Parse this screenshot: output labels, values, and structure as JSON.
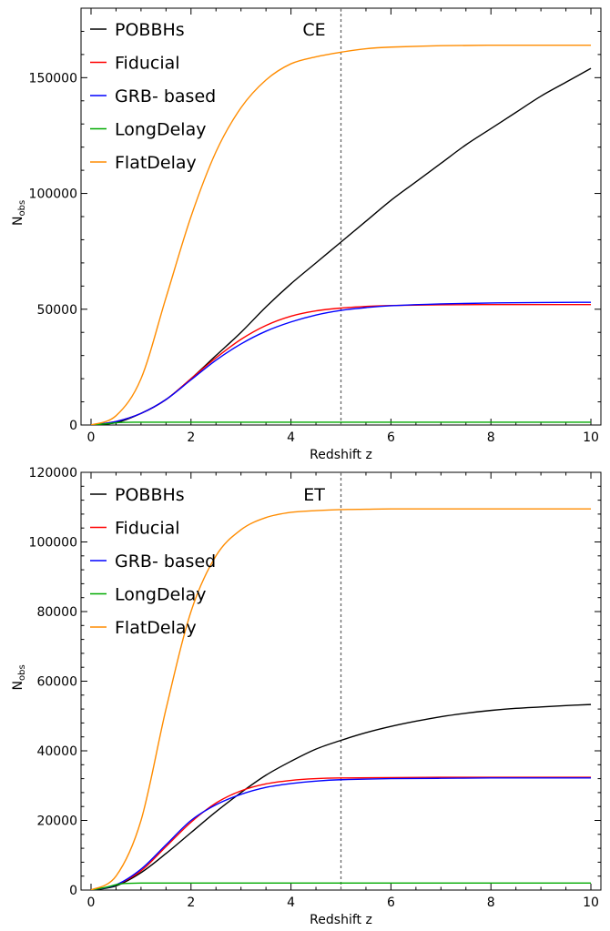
{
  "chart_data": [
    {
      "type": "line",
      "title": "CE",
      "xlabel": "Redshift z",
      "ylabel": "N",
      "ylabel_sub": "obs",
      "xlim": [
        -0.2,
        10.2
      ],
      "ylim": [
        0,
        180000
      ],
      "xticks": [
        0,
        2,
        4,
        6,
        8,
        10
      ],
      "xtick_labels": [
        "0",
        "2",
        "4",
        "6",
        "8",
        "10"
      ],
      "yticks": [
        0,
        50000,
        100000,
        150000
      ],
      "ytick_labels": [
        "0",
        "50000",
        "100000",
        "150000"
      ],
      "vline": 5,
      "legend_position": "top-left",
      "series": [
        {
          "name": "POBBHs",
          "color": "#000000",
          "x": [
            0,
            0.5,
            1,
            1.5,
            2,
            2.5,
            3,
            3.5,
            4,
            4.5,
            5,
            5.5,
            6,
            6.5,
            7,
            7.5,
            8,
            8.5,
            9,
            9.5,
            10
          ],
          "y": [
            0,
            1000,
            5000,
            11000,
            20000,
            30000,
            40000,
            51000,
            61000,
            70000,
            79000,
            88000,
            97000,
            105000,
            113000,
            121000,
            128000,
            135000,
            142000,
            148000,
            154000
          ]
        },
        {
          "name": "Fiducial",
          "color": "#ff0000",
          "x": [
            0,
            0.5,
            1,
            1.5,
            2,
            2.5,
            3,
            3.5,
            4,
            4.5,
            5,
            5.5,
            6,
            7,
            8,
            9,
            10
          ],
          "y": [
            0,
            1500,
            5000,
            11000,
            20000,
            29000,
            37000,
            43000,
            47000,
            49300,
            50500,
            51200,
            51600,
            51900,
            52000,
            52000,
            52000
          ]
        },
        {
          "name": "GRB- based",
          "color": "#0000ff",
          "x": [
            0,
            0.5,
            1,
            1.5,
            2,
            2.5,
            3,
            3.5,
            4,
            4.5,
            5,
            5.5,
            6,
            7,
            8,
            9,
            10
          ],
          "y": [
            0,
            1500,
            5000,
            11000,
            19500,
            28000,
            35000,
            40500,
            44500,
            47500,
            49500,
            50700,
            51500,
            52300,
            52700,
            52900,
            53000
          ]
        },
        {
          "name": "LongDelay",
          "color": "#00aa00",
          "x": [
            0,
            0.3,
            0.6,
            1,
            2,
            4,
            6,
            8,
            10
          ],
          "y": [
            0,
            500,
            1100,
            1200,
            1200,
            1200,
            1200,
            1200,
            1200
          ]
        },
        {
          "name": "FlatDelay",
          "color": "#ff8c00",
          "x": [
            0,
            0.5,
            1,
            1.5,
            2,
            2.5,
            3,
            3.5,
            4,
            4.5,
            5,
            5.5,
            6,
            7,
            8,
            9,
            10
          ],
          "y": [
            0,
            4000,
            20000,
            55000,
            90000,
            118000,
            137000,
            149000,
            156000,
            159000,
            161000,
            162500,
            163200,
            163800,
            164000,
            164000,
            164000
          ]
        }
      ]
    },
    {
      "type": "line",
      "title": "ET",
      "xlabel": "Redshift z",
      "ylabel": "N",
      "ylabel_sub": "obs",
      "xlim": [
        -0.2,
        10.2
      ],
      "ylim": [
        0,
        120000
      ],
      "xticks": [
        0,
        2,
        4,
        6,
        8,
        10
      ],
      "xtick_labels": [
        "0",
        "2",
        "4",
        "6",
        "8",
        "10"
      ],
      "yticks": [
        0,
        20000,
        40000,
        60000,
        80000,
        100000,
        120000
      ],
      "ytick_labels": [
        "0",
        "20000",
        "40000",
        "60000",
        "80000",
        "100000",
        "120000"
      ],
      "vline": 5,
      "legend_position": "top-left",
      "series": [
        {
          "name": "POBBHs",
          "color": "#000000",
          "x": [
            0,
            0.5,
            1,
            1.5,
            2,
            2.5,
            3,
            3.5,
            4,
            4.5,
            5,
            5.5,
            6,
            6.5,
            7,
            7.5,
            8,
            8.5,
            9,
            9.5,
            10
          ],
          "y": [
            0,
            1200,
            5000,
            10500,
            16500,
            22500,
            28000,
            33000,
            37000,
            40500,
            43000,
            45200,
            47000,
            48500,
            49800,
            50800,
            51600,
            52200,
            52600,
            53000,
            53300
          ]
        },
        {
          "name": "Fiducial",
          "color": "#ff0000",
          "x": [
            0,
            0.5,
            1,
            1.5,
            2,
            2.5,
            3,
            3.5,
            4,
            4.5,
            5,
            6,
            7,
            8,
            9,
            10
          ],
          "y": [
            0,
            1500,
            5500,
            12500,
            19500,
            25000,
            28500,
            30500,
            31500,
            32000,
            32200,
            32300,
            32400,
            32400,
            32400,
            32400
          ]
        },
        {
          "name": "GRB- based",
          "color": "#0000ff",
          "x": [
            0,
            0.5,
            1,
            1.5,
            2,
            2.5,
            3,
            3.5,
            4,
            4.5,
            5,
            6,
            7,
            8,
            9,
            10
          ],
          "y": [
            0,
            1500,
            6000,
            13000,
            20000,
            24500,
            27500,
            29500,
            30600,
            31300,
            31700,
            32000,
            32100,
            32200,
            32200,
            32200
          ]
        },
        {
          "name": "LongDelay",
          "color": "#00aa00",
          "x": [
            0,
            0.3,
            0.6,
            1,
            2,
            4,
            6,
            8,
            10
          ],
          "y": [
            0,
            800,
            1800,
            2000,
            2000,
            2000,
            2000,
            2000,
            2000
          ]
        },
        {
          "name": "FlatDelay",
          "color": "#ff8c00",
          "x": [
            0,
            0.5,
            1,
            1.5,
            2,
            2.5,
            3,
            3.5,
            4,
            4.5,
            5,
            5.5,
            6,
            7,
            8,
            9,
            10
          ],
          "y": [
            0,
            4000,
            20000,
            52000,
            80000,
            96000,
            103500,
            107000,
            108500,
            109000,
            109300,
            109400,
            109500,
            109500,
            109500,
            109500,
            109500
          ]
        }
      ]
    }
  ]
}
